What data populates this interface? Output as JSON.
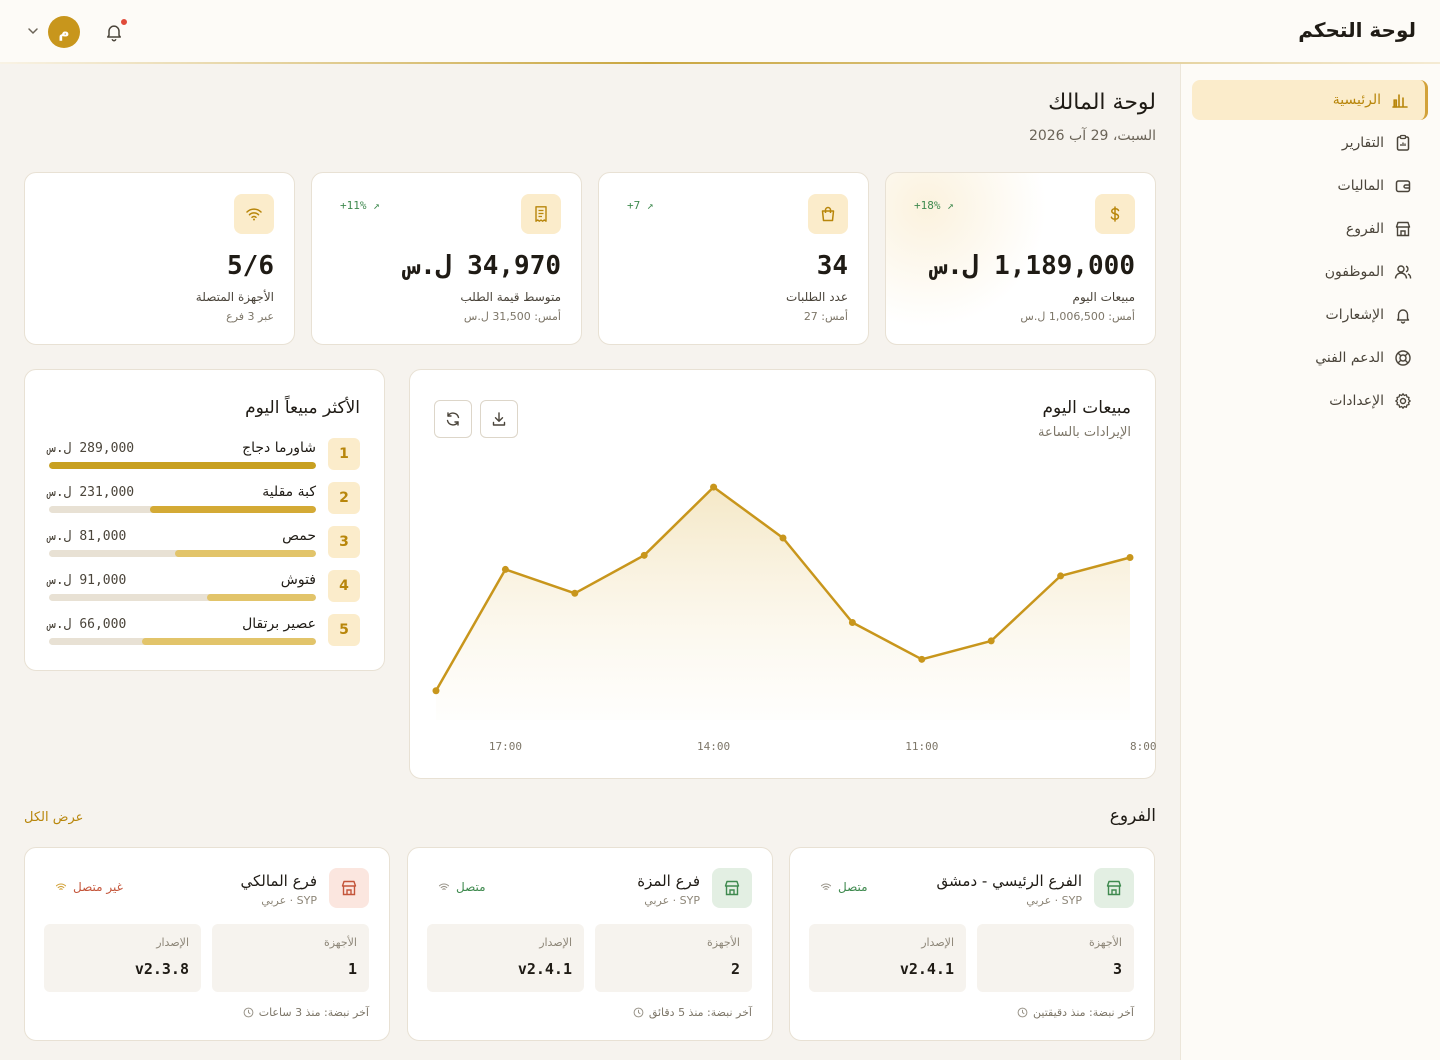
{
  "header": {
    "app_title": "لوحة التحكم",
    "avatar_initial": "م"
  },
  "sidebar": {
    "items": [
      {
        "label": "الرئيسية",
        "icon": "bar-chart-icon",
        "active": true
      },
      {
        "label": "التقارير",
        "icon": "clipboard-icon"
      },
      {
        "label": "الماليات",
        "icon": "wallet-icon"
      },
      {
        "label": "الفروع",
        "icon": "store-icon"
      },
      {
        "label": "الموظفون",
        "icon": "users-icon"
      },
      {
        "label": "الإشعارات",
        "icon": "bell-icon"
      },
      {
        "label": "الدعم الفني",
        "icon": "lifebuoy-icon"
      },
      {
        "label": "الإعدادات",
        "icon": "gear-icon"
      }
    ]
  },
  "page": {
    "title": "لوحة المالك",
    "date": "السبت، 29 آب 2026"
  },
  "stats": [
    {
      "label": "مبيعات اليوم",
      "value": "1,189,000 ل.س",
      "sub": "أمس: 1,006,500 ل.س",
      "trend": "+18%",
      "icon": "dollar-icon"
    },
    {
      "label": "عدد الطلبات",
      "value": "34",
      "sub": "أمس: 27",
      "trend": "+7",
      "icon": "shopping-bag-icon"
    },
    {
      "label": "متوسط قيمة الطلب",
      "value": "34,970 ل.س",
      "sub": "أمس: 31,500 ل.س",
      "trend": "+11%",
      "icon": "receipt-icon"
    },
    {
      "label": "الأجهزة المتصلة",
      "value": "5/6",
      "sub": "عبر 3 فرع",
      "trend": "",
      "icon": "wifi-icon"
    }
  ],
  "chart": {
    "title": "مبيعات اليوم",
    "subtitle": "الإيرادات بالساعة",
    "download_icon": "download-icon",
    "refresh_icon": "refresh-icon"
  },
  "chart_data": {
    "type": "area",
    "x": [
      "8:00",
      "9:00",
      "10:00",
      "11:00",
      "12:00",
      "13:00",
      "14:00",
      "15:00",
      "16:00",
      "17:00",
      "18:00"
    ],
    "x_tick_labels": [
      "8:00",
      "11:00",
      "14:00",
      "17:00"
    ],
    "values": [
      150,
      133,
      73,
      56,
      90,
      168,
      215,
      152,
      117,
      139,
      27
    ],
    "ylim": [
      0,
      240
    ],
    "grid": false,
    "color": "#c8961c"
  },
  "top_items": {
    "title": "الأكثر مبيعاً اليوم",
    "items": [
      {
        "rank": "1",
        "name": "شاورما دجاج",
        "amount": "289,000 ل.س",
        "share": 1.0,
        "color": "#c8a020"
      },
      {
        "rank": "2",
        "name": "كبة مقلية",
        "amount": "231,000 ل.س",
        "share": 0.62,
        "color": "#d4aa35"
      },
      {
        "rank": "3",
        "name": "حمص",
        "amount": "81,000 ل.س",
        "share": 0.53,
        "color": "#e2c46a"
      },
      {
        "rank": "4",
        "name": "فتوش",
        "amount": "91,000 ل.س",
        "share": 0.41,
        "color": "#e2c46a"
      },
      {
        "rank": "5",
        "name": "عصير برتقال",
        "amount": "66,000 ل.س",
        "share": 0.65,
        "color": "#e2c46a"
      }
    ]
  },
  "branches": {
    "title": "الفروع",
    "view_all": "عرض الكل",
    "devices_label": "الأجهزة",
    "version_label": "الإصدار",
    "items": [
      {
        "name": "الفرع الرئيسي - دمشق",
        "meta": "SYP · عربي",
        "status": "متصل",
        "online": true,
        "devices": "3",
        "version": "v2.4.1",
        "heartbeat": "آخر نبضة: منذ دقيقتين"
      },
      {
        "name": "فرع المزة",
        "meta": "SYP · عربي",
        "status": "متصل",
        "online": true,
        "devices": "2",
        "version": "v2.4.1",
        "heartbeat": "آخر نبضة: منذ 5 دقائق"
      },
      {
        "name": "فرع المالكي",
        "meta": "SYP · عربي",
        "status": "غير متصل",
        "online": false,
        "devices": "1",
        "version": "v2.3.8",
        "heartbeat": "آخر نبضة: منذ 3 ساعات"
      }
    ]
  }
}
